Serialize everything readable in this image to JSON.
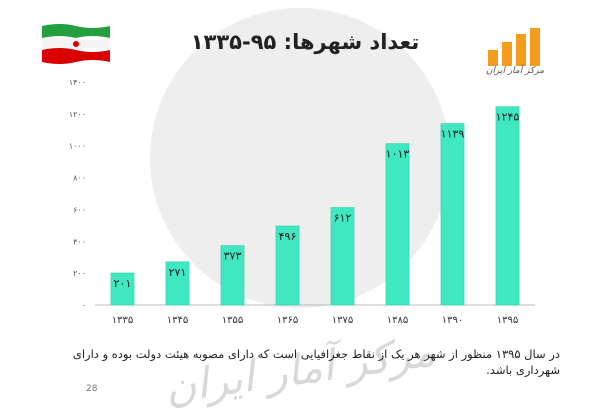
{
  "header": {
    "title": "تعداد شهرها: ۹۵-۱۳۳۵",
    "logo_caption": "مرکز آمار ایران"
  },
  "chart_data": {
    "type": "bar",
    "title": "تعداد شهرها: ۹۵-۱۳۳۵",
    "categories": [
      "۱۳۳۵",
      "۱۳۴۵",
      "۱۳۵۵",
      "۱۳۶۵",
      "۱۳۷۵",
      "۱۳۸۵",
      "۱۳۹۰",
      "۱۳۹۵"
    ],
    "values": [
      201,
      271,
      373,
      496,
      612,
      1013,
      1139,
      1245
    ],
    "data_labels": [
      "۲۰۱",
      "۲۷۱",
      "۳۷۳",
      "۴۹۶",
      "۶۱۲",
      "۱۰۱۳",
      "۱۱۳۹",
      "۱۲۴۵"
    ],
    "yticks": [
      0,
      200,
      400,
      600,
      800,
      1000,
      1200,
      1400
    ],
    "ytick_labels": [
      "۰",
      "۲۰۰",
      "۴۰۰",
      "۶۰۰",
      "۸۰۰",
      "۱۰۰۰",
      "۱۲۰۰",
      "۱۴۰۰"
    ],
    "ylim": [
      0,
      1400
    ],
    "grid": false,
    "bar_color": "#3fe8c0"
  },
  "caption": "در سال ۱۳۹۵ منظور از شهر هر یک از نقاط جغرافیایی است که دارای مصوبه هیئت دولت بوده و دارای شهرداری باشد.",
  "page_number": "28",
  "watermark": "مرکز آمار ایران",
  "colors": {
    "flag_green": "#239f40",
    "flag_red": "#da0000",
    "logo_orange": "#f39c1e"
  }
}
